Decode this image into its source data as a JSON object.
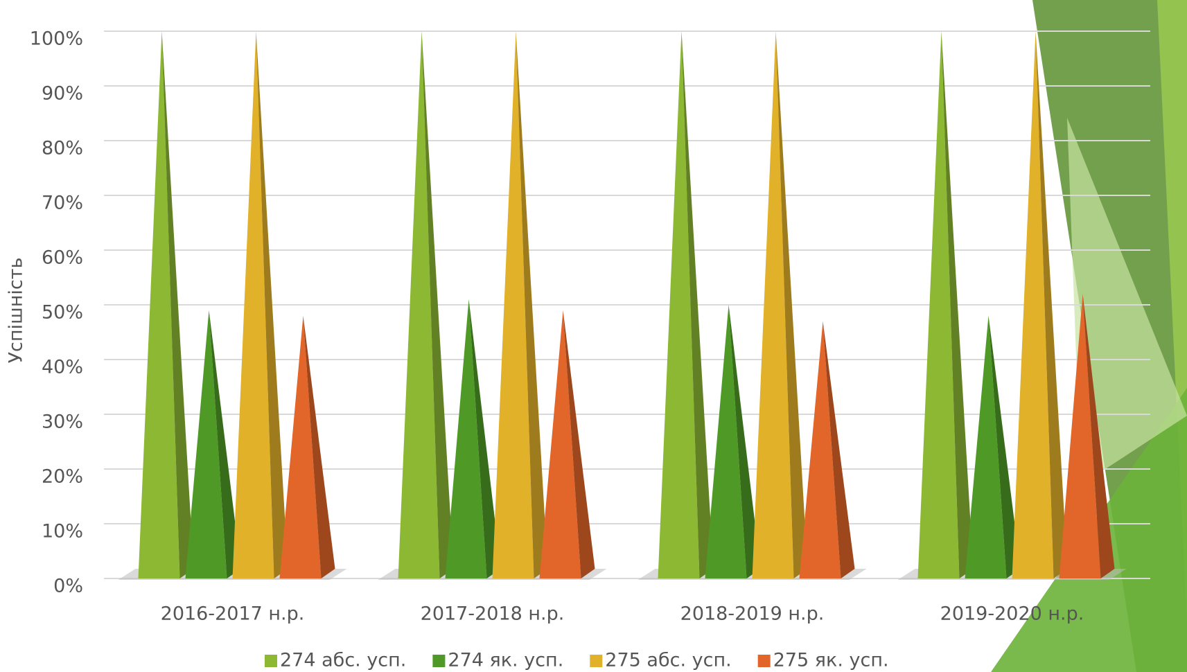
{
  "chart_data": {
    "type": "bar",
    "y_axis_label": "Успішність",
    "categories": [
      "2016-2017 н.р.",
      "2017-2018 н.р.",
      "2018-2019 н.р.",
      "2019-2020 н.р."
    ],
    "series": [
      {
        "name": "274 абс. усп.",
        "color": "#8cb833",
        "values": [
          100,
          100,
          100,
          100
        ]
      },
      {
        "name": "274 як. усп.",
        "color": "#4f9a27",
        "values": [
          49,
          51,
          50,
          48
        ]
      },
      {
        "name": "275 абс. усп.",
        "color": "#e1b12a",
        "values": [
          100,
          100,
          100,
          100
        ]
      },
      {
        "name": "275 як. усп.",
        "color": "#e2652a",
        "values": [
          48,
          49,
          47,
          52
        ]
      }
    ],
    "ylim": [
      0,
      100
    ],
    "yticks": [
      {
        "value": 0,
        "label": "0%"
      },
      {
        "value": 10,
        "label": "10%"
      },
      {
        "value": 20,
        "label": "20%"
      },
      {
        "value": 30,
        "label": "30%"
      },
      {
        "value": 40,
        "label": "40%"
      },
      {
        "value": 50,
        "label": "50%"
      },
      {
        "value": 60,
        "label": "60%"
      },
      {
        "value": 70,
        "label": "70%"
      },
      {
        "value": 80,
        "label": "80%"
      },
      {
        "value": 90,
        "label": "90%"
      },
      {
        "value": 100,
        "label": "100%"
      }
    ],
    "grid": true,
    "legend": "bottom"
  }
}
